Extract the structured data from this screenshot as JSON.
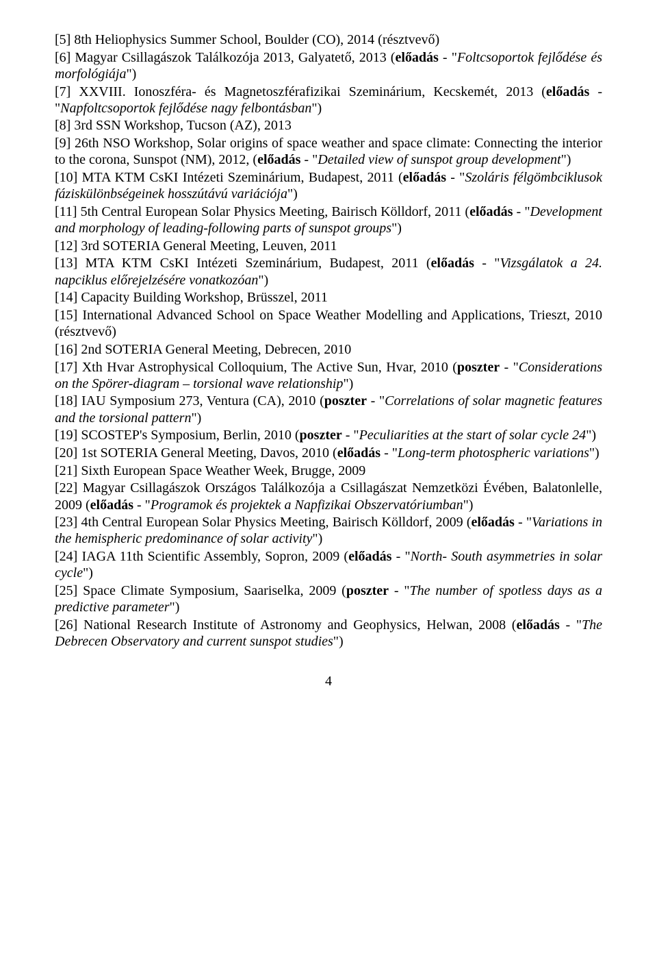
{
  "entries": [
    {
      "raw": "[5] 8th Heliophysics Summer School, Boulder (CO), 2014 (résztvevő)"
    },
    {
      "prefix": "[6] Magyar Csillagászok Találkozója 2013, Galyatető, 2013 (",
      "bold": "előadás",
      "mid": " - \"",
      "italic": "Foltcsoportok fejlő­dése és morfológiája",
      "suffix": "\")"
    },
    {
      "prefix": "[7] XXVIII. Ionoszféra- és Magnetoszférafizikai Szeminárium, Kecskemét, 2013 (",
      "bold": "előadás",
      "mid": " - \"",
      "italic": "Napfoltcsoportok fejlődése nagy felbontásban",
      "suffix": "\")"
    },
    {
      "raw": "[8] 3rd SSN Workshop, Tucson (AZ), 2013"
    },
    {
      "prefix": "[9] 26th NSO Workshop, Solar origins of space weather and space climate: Connecting the interior to the corona, Sunspot (NM), 2012, (",
      "bold": "előadás",
      "mid": " - \"",
      "italic": "Detailed view of sunspot group de­velopment",
      "suffix": "\")"
    },
    {
      "prefix": "[10] MTA KTM CsKI Intézeti Szeminárium, Budapest, 2011 (",
      "bold": "előadás",
      "mid": " - \"",
      "italic": "Szoláris félgömb­ciklusok fáziskülönbségeinek hosszútávú variációja",
      "suffix": "\")"
    },
    {
      "prefix": "[11] 5th Central European Solar Physics Meeting, Bairisch Kölldorf, 2011 (",
      "bold": "előadás",
      "mid": " - \"",
      "italic": "De­velopment and morphology of leading-following parts of sunspot groups",
      "suffix": "\")"
    },
    {
      "raw": "[12] 3rd SOTERIA General Meeting, Leuven, 2011"
    },
    {
      "prefix": "[13] MTA KTM CsKI Intézeti Szeminárium, Budapest, 2011 (",
      "bold": "előadás",
      "mid": " - \"",
      "italic": "Vizsgálatok a 24. napciklus előrejelzésére vonatkozóan",
      "suffix": "\")"
    },
    {
      "raw": "[14] Capacity Building Workshop, Brüsszel, 2011"
    },
    {
      "raw": "[15] International Advanced School on Space Weather Modelling and Applications, Trieszt, 2010 (résztvevő)"
    },
    {
      "raw": "[16] 2nd SOTERIA General Meeting, Debrecen, 2010"
    },
    {
      "prefix": "[17] Xth Hvar Astrophysical Colloquium, The Active Sun, Hvar, 2010 (",
      "bold": "poszter",
      "mid": " - \"",
      "italic": "Conside­rations on the Spörer-diagram – torsional wave relationship",
      "suffix": "\")"
    },
    {
      "prefix": "[18] IAU Symposium 273, Ventura (CA), 2010 (",
      "bold": "poszter",
      "mid": " - \"",
      "italic": "Correlations of solar magnetic features and the torsional pattern",
      "suffix": "\")"
    },
    {
      "prefix": "[19] SCOSTEP's Symposium, Berlin, 2010 (",
      "bold": "poszter",
      "mid": " - \"",
      "italic": "Peculiarities at the start of solar cycle 24",
      "suffix": "\")"
    },
    {
      "prefix": "[20] 1st SOTERIA General Meeting, Davos, 2010 (",
      "bold": "előadás",
      "mid": " - \"",
      "italic": "Long-term photospheric va­riations",
      "suffix": "\")"
    },
    {
      "raw": "[21] Sixth European Space Weather Week, Brugge, 2009"
    },
    {
      "prefix": "[22] Magyar Csillagászok Országos Találkozója a Csillagászat Nemzetközi Évében, Bala­tonlelle, 2009 (",
      "bold": "előadás",
      "mid": " - \"",
      "italic": "Programok és projektek a Napfizikai Obszervatóriumban",
      "suffix": "\")"
    },
    {
      "prefix": "[23] 4th Central European Solar Physics Meeting, Bairisch Kölldorf, 2009 (",
      "bold": "előadás",
      "mid": " - \"",
      "italic": "Vari­ations in the hemispheric predominance of solar activity",
      "suffix": "\")"
    },
    {
      "prefix": "[24] IAGA 11th Scientific Assembly, Sopron, 2009 (",
      "bold": "előadás",
      "mid": " - \"",
      "italic": "North- South asymmetries in solar cycle",
      "suffix": "\")"
    },
    {
      "prefix": "[25] Space Climate Symposium, Saariselka, 2009 (",
      "bold": "poszter",
      "mid": " - \"",
      "italic": "The number of spotless days as a predictive parameter",
      "suffix": "\")"
    },
    {
      "prefix": "[26] National Research Institute of Astronomy and Geophysics, Helwan, 2008 (",
      "bold": "előadás",
      "mid": " - \"",
      "italic": "The Debrecen Observatory and current sunspot studies",
      "suffix": "\")"
    }
  ],
  "page_number": "4"
}
